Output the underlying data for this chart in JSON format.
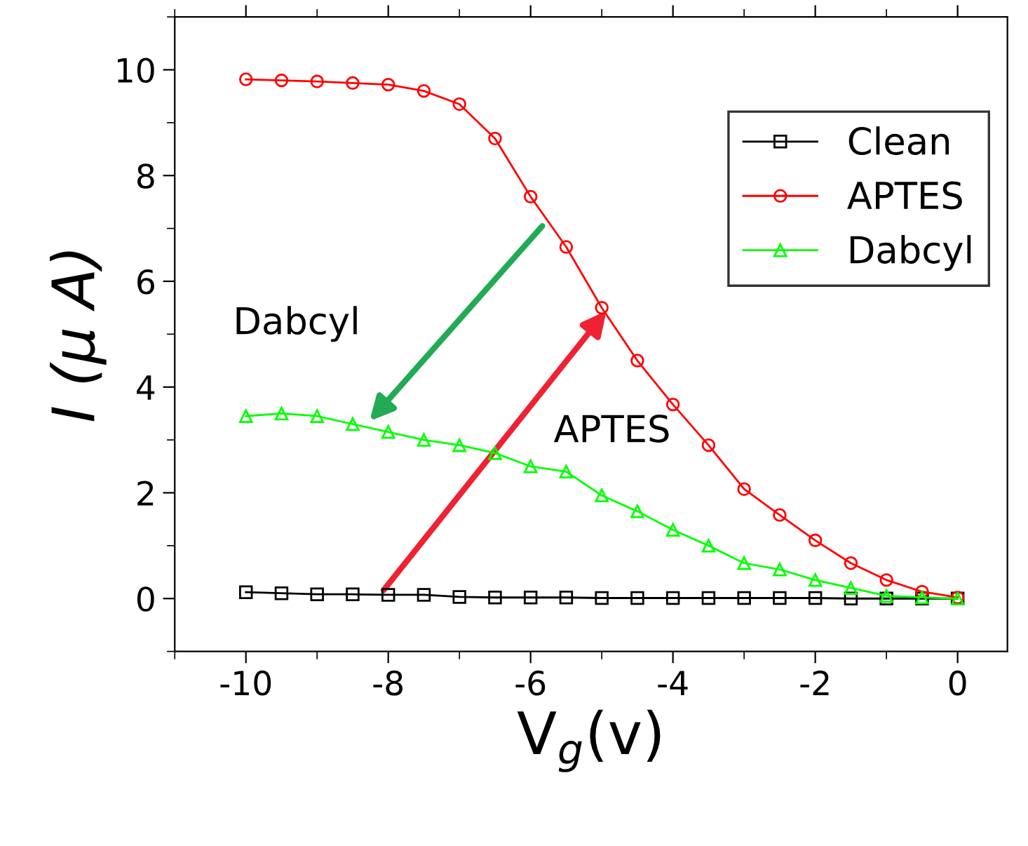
{
  "chart_data": {
    "type": "line",
    "xlabel": "V$_{g}$(v)",
    "ylabel": "I (μ A)",
    "x": [
      -10,
      -9.5,
      -9,
      -8.5,
      -8,
      -7.5,
      -7,
      -6.5,
      -6,
      -5.5,
      -5,
      -4.5,
      -4,
      -3.5,
      -3,
      -2.5,
      -2,
      -1.5,
      -1,
      -0.5,
      0
    ],
    "series": [
      {
        "name": "Clean",
        "color": "#000000",
        "marker": "square",
        "values": [
          0.12,
          0.1,
          0.08,
          0.08,
          0.07,
          0.07,
          0.03,
          0.02,
          0.02,
          0.02,
          0.01,
          0.01,
          0.01,
          0.01,
          0.01,
          0.01,
          0.01,
          0.0,
          0.0,
          0.0,
          0.0
        ]
      },
      {
        "name": "APTES",
        "color": "#ff0000",
        "marker": "circle",
        "values": [
          9.82,
          9.8,
          9.78,
          9.75,
          9.72,
          9.6,
          9.35,
          8.7,
          7.6,
          6.65,
          5.5,
          4.5,
          3.67,
          2.9,
          2.07,
          1.58,
          1.1,
          0.67,
          0.35,
          0.13,
          0.02
        ]
      },
      {
        "name": "Dabcyl",
        "color": "#00ff00",
        "marker": "triangle",
        "values": [
          3.45,
          3.5,
          3.45,
          3.3,
          3.15,
          3.0,
          2.9,
          2.75,
          2.5,
          2.4,
          1.95,
          1.65,
          1.3,
          1.0,
          0.67,
          0.55,
          0.35,
          0.2,
          0.05,
          0.02,
          0.0
        ]
      }
    ],
    "xlim": [
      -11,
      0.7
    ],
    "ylim": [
      -1,
      11
    ],
    "xticks": [
      -10,
      -8,
      -6,
      -4,
      -2,
      0
    ],
    "yticks": [
      0,
      2,
      4,
      6,
      8,
      10
    ],
    "legend": "top right",
    "grid": false,
    "line_style": "solid",
    "annotations": [
      {
        "text": "Dabcyl",
        "x": -8.3,
        "y": 3.3
      },
      {
        "text": "APTES",
        "x": -4.9,
        "y": 5.5
      }
    ]
  }
}
